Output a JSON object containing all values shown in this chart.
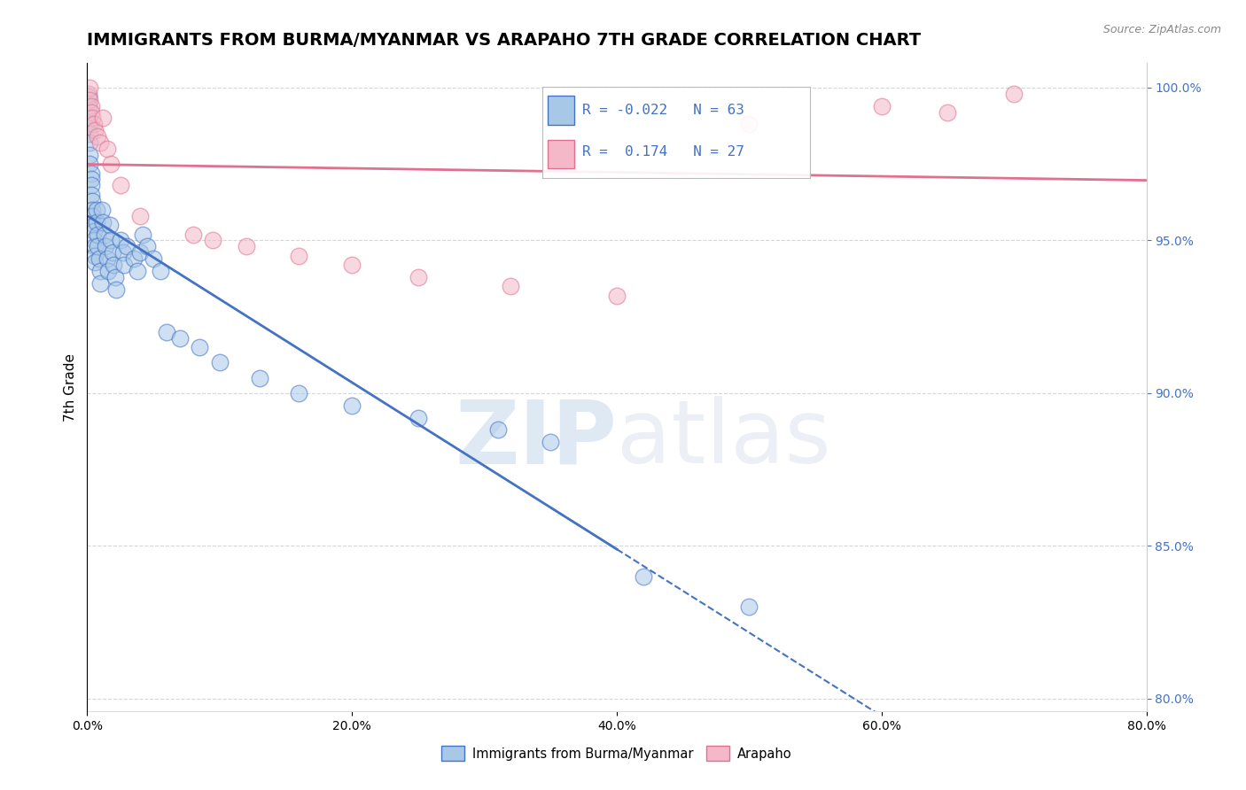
{
  "title": "IMMIGRANTS FROM BURMA/MYANMAR VS ARAPAHO 7TH GRADE CORRELATION CHART",
  "source": "Source: ZipAtlas.com",
  "ylabel": "7th Grade",
  "legend_label1": "Immigrants from Burma/Myanmar",
  "legend_label2": "Arapaho",
  "r1": -0.022,
  "n1": 63,
  "r2": 0.174,
  "n2": 27,
  "xmin": 0.0,
  "xmax": 0.8,
  "ymin": 0.796,
  "ymax": 1.008,
  "color_blue": "#a8c8e8",
  "color_pink": "#f4b8c8",
  "color_blue_line": "#4472c4",
  "color_pink_line": "#e07090",
  "color_text_blue": "#4472c4",
  "blue_scatter_x": [
    0.001,
    0.001,
    0.001,
    0.002,
    0.002,
    0.002,
    0.002,
    0.002,
    0.003,
    0.003,
    0.003,
    0.003,
    0.004,
    0.004,
    0.004,
    0.005,
    0.005,
    0.005,
    0.006,
    0.006,
    0.006,
    0.007,
    0.007,
    0.008,
    0.008,
    0.009,
    0.01,
    0.01,
    0.011,
    0.012,
    0.013,
    0.014,
    0.015,
    0.016,
    0.017,
    0.018,
    0.019,
    0.02,
    0.021,
    0.022,
    0.025,
    0.027,
    0.028,
    0.03,
    0.035,
    0.038,
    0.04,
    0.042,
    0.045,
    0.05,
    0.055,
    0.06,
    0.07,
    0.085,
    0.1,
    0.13,
    0.16,
    0.2,
    0.25,
    0.31,
    0.35,
    0.42,
    0.5
  ],
  "blue_scatter_y": [
    0.997,
    0.994,
    0.99,
    0.988,
    0.985,
    0.982,
    0.978,
    0.975,
    0.972,
    0.97,
    0.968,
    0.965,
    0.963,
    0.96,
    0.958,
    0.955,
    0.953,
    0.95,
    0.948,
    0.945,
    0.943,
    0.96,
    0.956,
    0.952,
    0.948,
    0.944,
    0.94,
    0.936,
    0.96,
    0.956,
    0.952,
    0.948,
    0.944,
    0.94,
    0.955,
    0.95,
    0.946,
    0.942,
    0.938,
    0.934,
    0.95,
    0.946,
    0.942,
    0.948,
    0.944,
    0.94,
    0.946,
    0.952,
    0.948,
    0.944,
    0.94,
    0.92,
    0.918,
    0.915,
    0.91,
    0.905,
    0.9,
    0.896,
    0.892,
    0.888,
    0.884,
    0.84,
    0.83
  ],
  "pink_scatter_x": [
    0.001,
    0.002,
    0.002,
    0.003,
    0.003,
    0.004,
    0.005,
    0.006,
    0.008,
    0.01,
    0.012,
    0.015,
    0.018,
    0.025,
    0.04,
    0.08,
    0.095,
    0.12,
    0.16,
    0.2,
    0.25,
    0.32,
    0.4,
    0.5,
    0.6,
    0.65,
    0.7
  ],
  "pink_scatter_y": [
    0.998,
    1.0,
    0.996,
    0.994,
    0.992,
    0.99,
    0.988,
    0.986,
    0.984,
    0.982,
    0.99,
    0.98,
    0.975,
    0.968,
    0.958,
    0.952,
    0.95,
    0.948,
    0.945,
    0.942,
    0.938,
    0.935,
    0.932,
    0.988,
    0.994,
    0.992,
    0.998
  ],
  "watermark_zip": "ZIP",
  "watermark_atlas": "atlas",
  "title_fontsize": 14,
  "axis_label_fontsize": 11,
  "tick_fontsize": 10,
  "source_fontsize": 9
}
